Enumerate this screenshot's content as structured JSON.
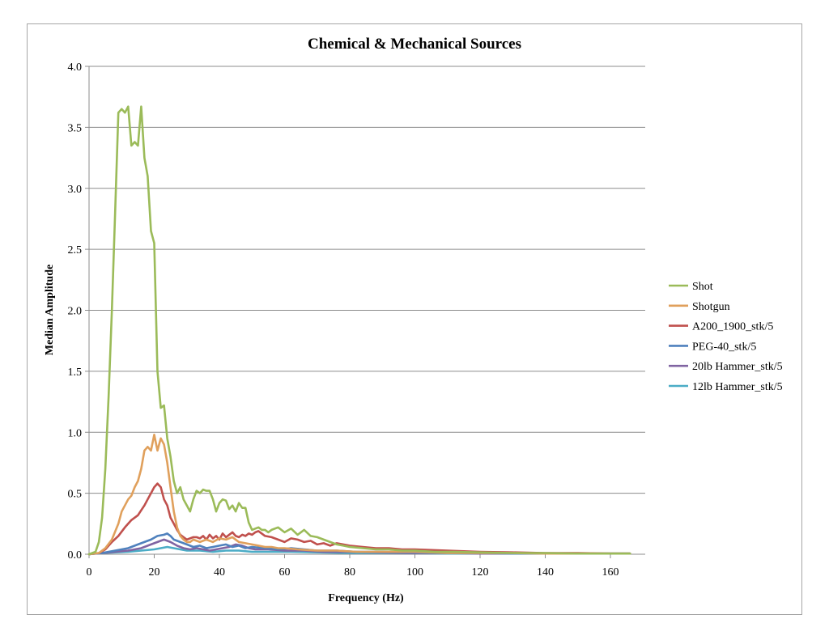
{
  "chart_data": {
    "type": "line",
    "title": "Chemical & Mechanical Sources",
    "xlabel": "Frequency (Hz)",
    "ylabel": "Median Amplitude",
    "xlim": [
      0,
      170
    ],
    "ylim": [
      0,
      4.0
    ],
    "xticks": [
      0,
      20,
      40,
      60,
      80,
      100,
      120,
      140,
      160
    ],
    "yticks": [
      0.0,
      0.5,
      1.0,
      1.5,
      2.0,
      2.5,
      3.0,
      3.5,
      4.0
    ],
    "xtick_labels": [
      "0",
      "20",
      "40",
      "60",
      "80",
      "100",
      "120",
      "140",
      "160"
    ],
    "ytick_labels": [
      "0.0",
      "0.5",
      "1.0",
      "1.5",
      "2.0",
      "2.5",
      "3.0",
      "3.5",
      "4.0"
    ],
    "grid": "horizontal",
    "legend_position": "right",
    "series": [
      {
        "name": "Shot",
        "color": "#9bbb59",
        "x": [
          0,
          2,
          3,
          4,
          5,
          6,
          7,
          8,
          9,
          10,
          11,
          12,
          13,
          14,
          15,
          16,
          17,
          18,
          19,
          20,
          21,
          22,
          23,
          24,
          25,
          26,
          27,
          28,
          29,
          30,
          31,
          32,
          33,
          34,
          35,
          36,
          37,
          38,
          39,
          40,
          41,
          42,
          43,
          44,
          45,
          46,
          47,
          48,
          49,
          50,
          51,
          52,
          53,
          54,
          55,
          56,
          58,
          60,
          62,
          64,
          66,
          68,
          70,
          72,
          74,
          76,
          78,
          80,
          84,
          88,
          92,
          96,
          100,
          106,
          112,
          120,
          130,
          140,
          150,
          160,
          166
        ],
        "values": [
          0.0,
          0.02,
          0.1,
          0.3,
          0.7,
          1.3,
          2.0,
          2.8,
          3.62,
          3.65,
          3.62,
          3.67,
          3.35,
          3.38,
          3.35,
          3.67,
          3.25,
          3.1,
          2.65,
          2.55,
          1.5,
          1.2,
          1.22,
          0.95,
          0.8,
          0.6,
          0.5,
          0.55,
          0.45,
          0.4,
          0.35,
          0.45,
          0.52,
          0.5,
          0.53,
          0.52,
          0.52,
          0.45,
          0.35,
          0.42,
          0.45,
          0.44,
          0.37,
          0.4,
          0.35,
          0.42,
          0.38,
          0.38,
          0.26,
          0.2,
          0.21,
          0.22,
          0.2,
          0.2,
          0.18,
          0.2,
          0.22,
          0.18,
          0.21,
          0.16,
          0.2,
          0.15,
          0.14,
          0.12,
          0.1,
          0.08,
          0.07,
          0.06,
          0.05,
          0.04,
          0.04,
          0.03,
          0.03,
          0.02,
          0.02,
          0.015,
          0.01,
          0.01,
          0.005,
          0.005,
          0.005
        ]
      },
      {
        "name": "Shotgun",
        "color": "#e0a05c",
        "x": [
          0,
          3,
          5,
          7,
          9,
          10,
          11,
          12,
          13,
          14,
          15,
          16,
          17,
          18,
          19,
          20,
          21,
          22,
          23,
          24,
          25,
          26,
          27,
          28,
          29,
          30,
          31,
          32,
          34,
          36,
          38,
          40,
          42,
          44,
          46,
          48,
          50,
          52,
          54,
          56,
          58,
          60,
          64,
          70,
          76,
          82,
          90,
          100,
          110,
          120,
          130,
          140,
          150,
          160,
          166
        ],
        "values": [
          0.0,
          0.01,
          0.05,
          0.12,
          0.25,
          0.35,
          0.4,
          0.45,
          0.48,
          0.55,
          0.6,
          0.7,
          0.85,
          0.88,
          0.85,
          0.98,
          0.85,
          0.95,
          0.9,
          0.75,
          0.55,
          0.35,
          0.22,
          0.15,
          0.12,
          0.1,
          0.1,
          0.12,
          0.1,
          0.12,
          0.1,
          0.13,
          0.12,
          0.14,
          0.1,
          0.09,
          0.08,
          0.07,
          0.06,
          0.06,
          0.05,
          0.05,
          0.04,
          0.03,
          0.03,
          0.02,
          0.02,
          0.02,
          0.01,
          0.01,
          0.01,
          0.005,
          0.005,
          0.005,
          0.005
        ]
      },
      {
        "name": "A200_1900_stk/5",
        "color": "#c0504d",
        "x": [
          0,
          3,
          5,
          7,
          9,
          11,
          13,
          15,
          16,
          17,
          18,
          19,
          20,
          21,
          22,
          23,
          24,
          25,
          26,
          27,
          28,
          29,
          30,
          31,
          32,
          33,
          34,
          35,
          36,
          37,
          38,
          39,
          40,
          41,
          42,
          43,
          44,
          45,
          46,
          47,
          48,
          49,
          50,
          51,
          52,
          53,
          54,
          56,
          58,
          60,
          62,
          64,
          66,
          68,
          70,
          72,
          74,
          76,
          78,
          80,
          84,
          88,
          92,
          96,
          100,
          110,
          120,
          130,
          140,
          150,
          160,
          166
        ],
        "values": [
          0.0,
          0.01,
          0.04,
          0.1,
          0.15,
          0.22,
          0.28,
          0.32,
          0.36,
          0.4,
          0.45,
          0.5,
          0.55,
          0.58,
          0.55,
          0.45,
          0.4,
          0.3,
          0.25,
          0.2,
          0.16,
          0.14,
          0.12,
          0.13,
          0.14,
          0.14,
          0.13,
          0.15,
          0.12,
          0.16,
          0.13,
          0.15,
          0.12,
          0.17,
          0.14,
          0.16,
          0.18,
          0.15,
          0.14,
          0.16,
          0.15,
          0.17,
          0.16,
          0.18,
          0.19,
          0.17,
          0.15,
          0.14,
          0.12,
          0.1,
          0.13,
          0.12,
          0.1,
          0.11,
          0.08,
          0.09,
          0.07,
          0.09,
          0.08,
          0.07,
          0.06,
          0.05,
          0.05,
          0.04,
          0.04,
          0.03,
          0.02,
          0.015,
          0.01,
          0.01,
          0.005,
          0.005
        ]
      },
      {
        "name": "PEG-40_stk/5",
        "color": "#4f81bd",
        "x": [
          0,
          4,
          8,
          12,
          15,
          17,
          19,
          21,
          23,
          24,
          25,
          26,
          28,
          30,
          32,
          34,
          36,
          38,
          40,
          42,
          44,
          46,
          48,
          50,
          54,
          58,
          62,
          66,
          70,
          76,
          82,
          90,
          100,
          110,
          120,
          130,
          140,
          150,
          160,
          166
        ],
        "values": [
          0.0,
          0.01,
          0.03,
          0.05,
          0.08,
          0.1,
          0.12,
          0.15,
          0.16,
          0.17,
          0.15,
          0.12,
          0.1,
          0.08,
          0.06,
          0.07,
          0.05,
          0.06,
          0.07,
          0.08,
          0.06,
          0.07,
          0.05,
          0.06,
          0.05,
          0.04,
          0.05,
          0.04,
          0.03,
          0.03,
          0.02,
          0.02,
          0.015,
          0.01,
          0.01,
          0.005,
          0.005,
          0.005,
          0.005,
          0.005
        ]
      },
      {
        "name": "20lb Hammer_stk/5",
        "color": "#8064a2",
        "x": [
          0,
          4,
          8,
          12,
          16,
          19,
          21,
          23,
          25,
          27,
          29,
          31,
          33,
          35,
          37,
          39,
          41,
          43,
          45,
          47,
          49,
          51,
          55,
          60,
          66,
          72,
          80,
          90,
          100,
          110,
          120,
          130,
          140,
          150,
          160,
          166
        ],
        "values": [
          0.0,
          0.01,
          0.02,
          0.03,
          0.05,
          0.08,
          0.1,
          0.12,
          0.1,
          0.07,
          0.05,
          0.04,
          0.05,
          0.04,
          0.03,
          0.04,
          0.05,
          0.06,
          0.08,
          0.07,
          0.05,
          0.04,
          0.04,
          0.03,
          0.03,
          0.02,
          0.02,
          0.015,
          0.01,
          0.01,
          0.005,
          0.005,
          0.005,
          0.005,
          0.005,
          0.005
        ]
      },
      {
        "name": "12lb Hammer_stk/5",
        "color": "#4bacc6",
        "x": [
          0,
          4,
          8,
          12,
          16,
          20,
          22,
          24,
          26,
          28,
          30,
          34,
          38,
          42,
          46,
          50,
          56,
          62,
          70,
          80,
          90,
          100,
          110,
          120,
          130,
          140,
          150,
          160,
          166
        ],
        "values": [
          0.0,
          0.01,
          0.015,
          0.02,
          0.03,
          0.04,
          0.05,
          0.06,
          0.05,
          0.04,
          0.03,
          0.03,
          0.02,
          0.03,
          0.03,
          0.02,
          0.02,
          0.02,
          0.015,
          0.01,
          0.01,
          0.01,
          0.005,
          0.005,
          0.005,
          0.005,
          0.005,
          0.005,
          0.005
        ]
      }
    ]
  }
}
